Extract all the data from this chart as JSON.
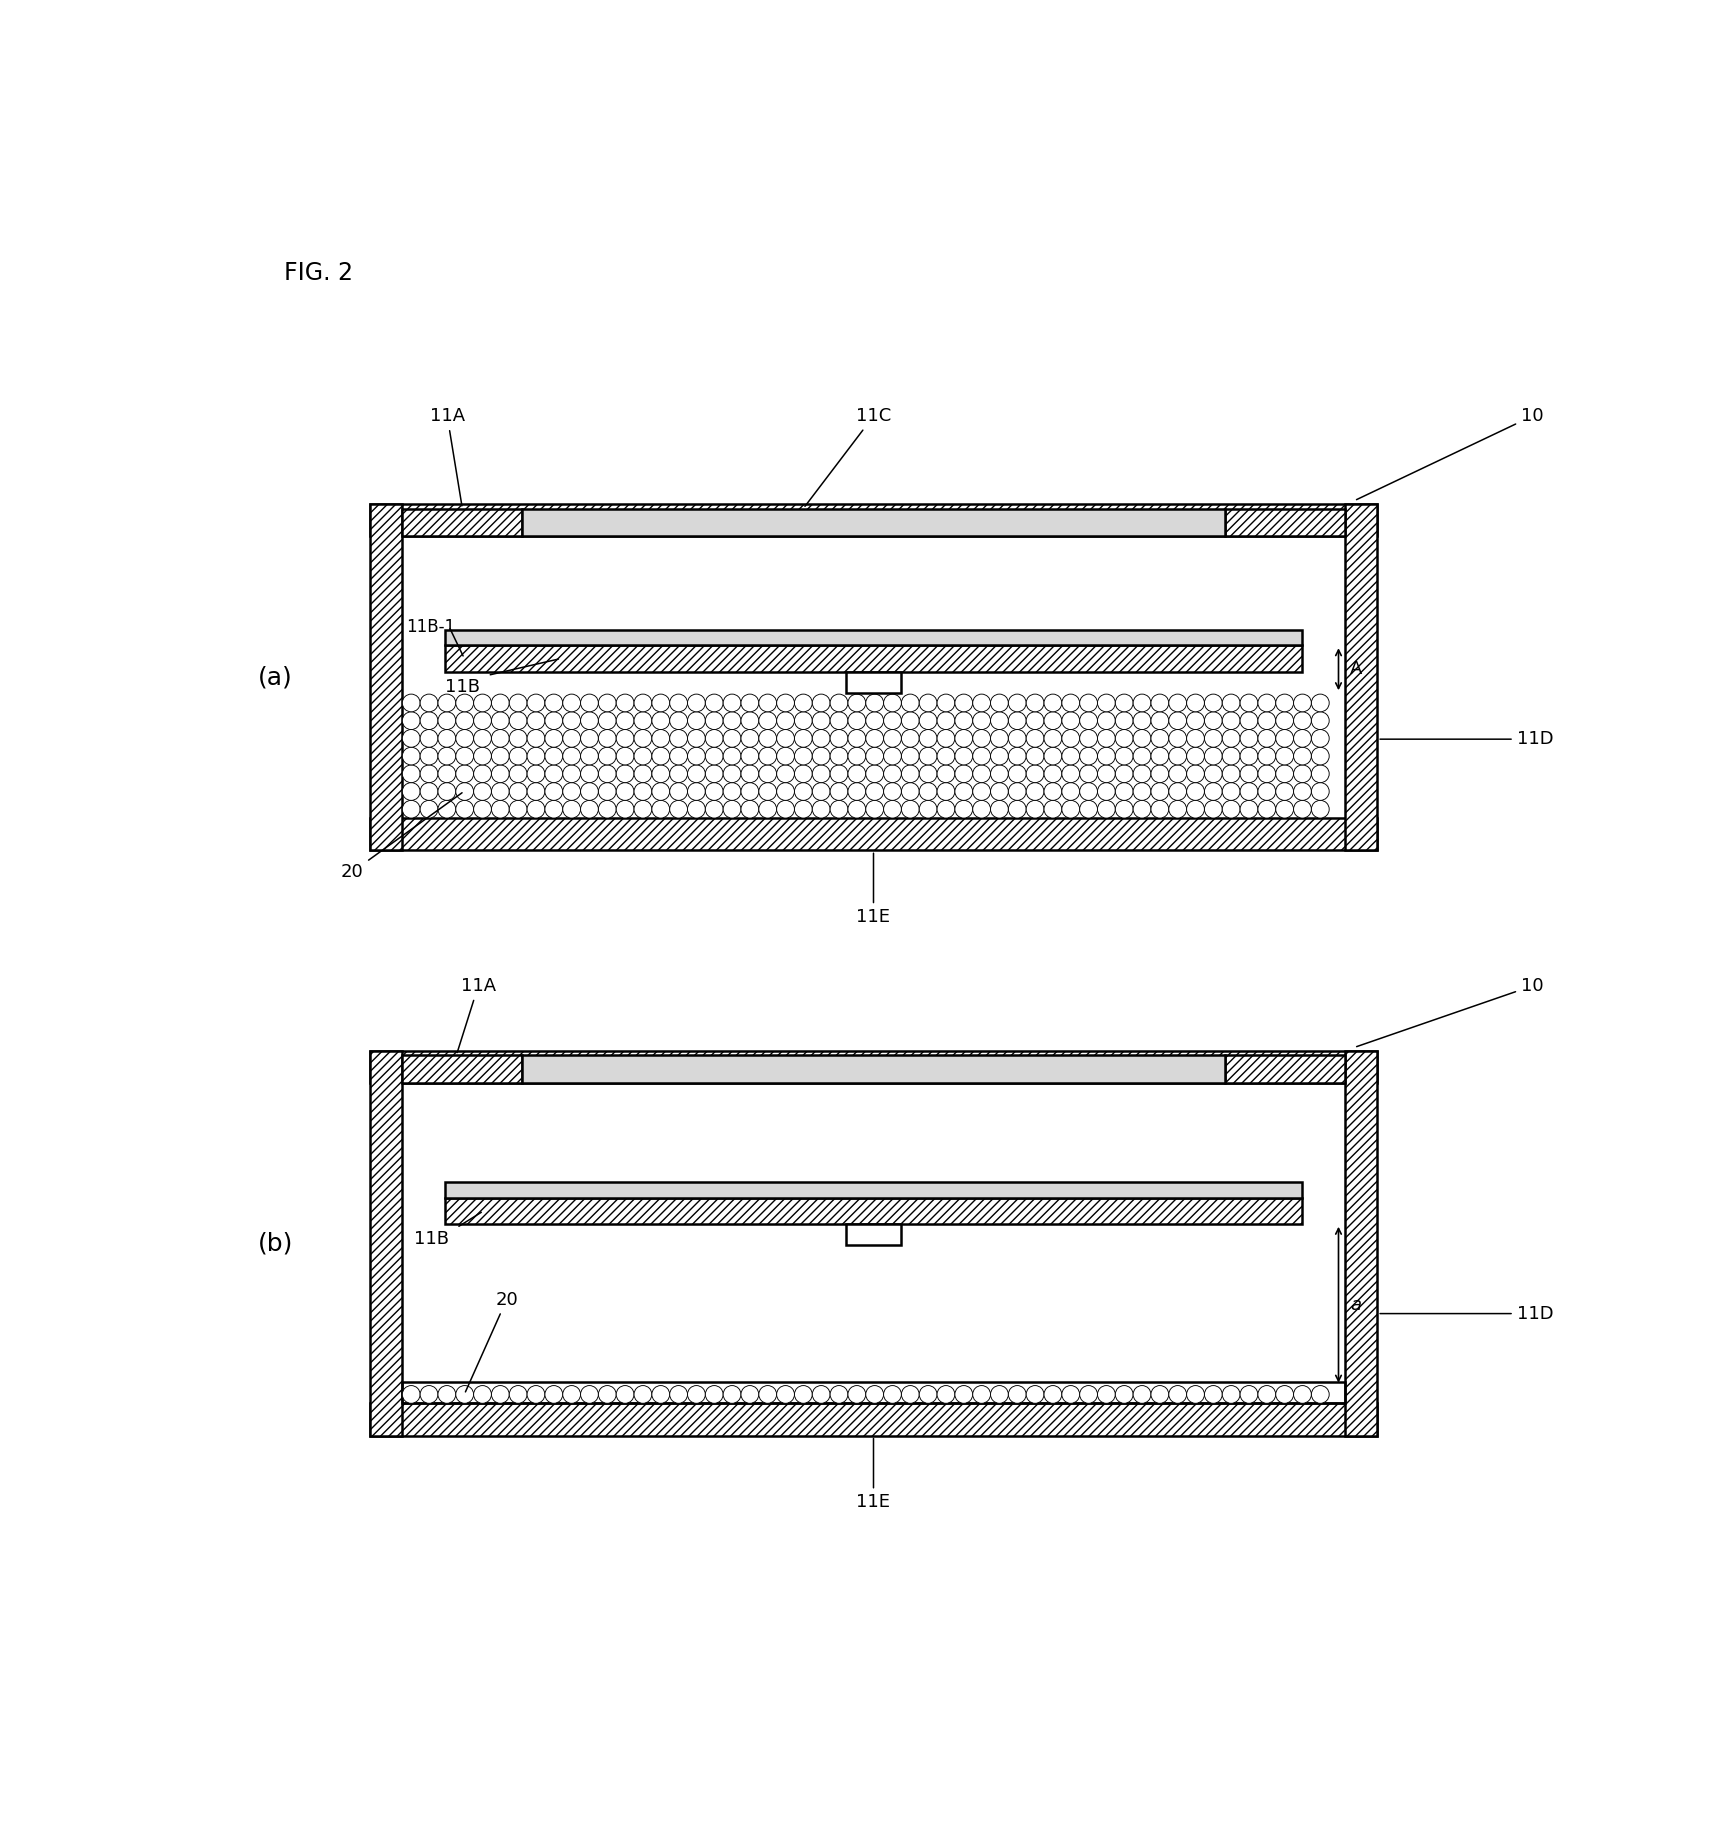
{
  "fig_label": "FIG. 2",
  "bg": "#ffffff",
  "lc": "#000000",
  "panel_a": "(a)",
  "panel_b": "(b)"
}
